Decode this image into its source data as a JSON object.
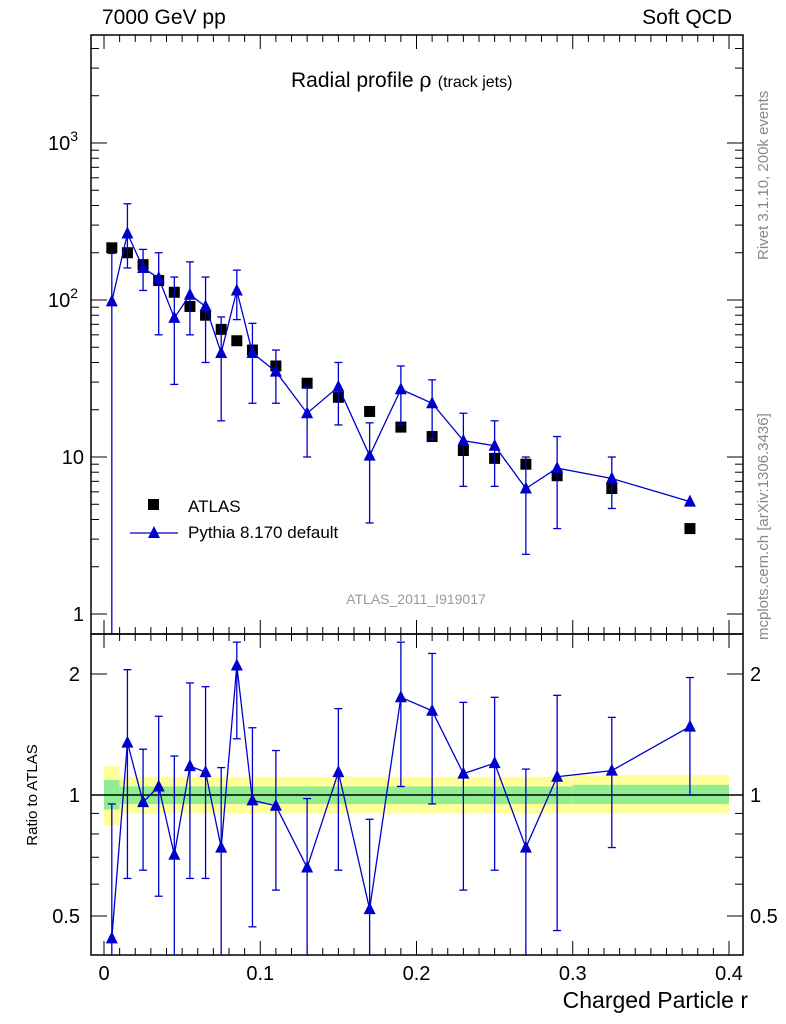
{
  "header": {
    "left": "7000 GeV pp",
    "right": "Soft QCD"
  },
  "side": {
    "top": "Rivet 3.1.10,  200k events",
    "bottom": "mcplots.cern.ch [arXiv:1306.3436]"
  },
  "chart_data": [
    {
      "type": "scatter",
      "title_main": "Radial profile ",
      "title_symbol": "ρ",
      "title_sub": "(track jets)",
      "xlabel": "Charged Particle r",
      "ylabel": "",
      "yscale": "log",
      "xlim": [
        -0.01,
        0.4
      ],
      "ylim": [
        0.8,
        5000
      ],
      "y_ticks": [
        "1",
        "10",
        "10²",
        "10³"
      ],
      "watermark": "ATLAS_2011_I919017",
      "series": [
        {
          "name": "ATLAS",
          "marker": "square",
          "color": "#000000",
          "points": [
            {
              "x": 0.005,
              "y": 215
            },
            {
              "x": 0.015,
              "y": 200
            },
            {
              "x": 0.025,
              "y": 168
            },
            {
              "x": 0.035,
              "y": 133
            },
            {
              "x": 0.045,
              "y": 112
            },
            {
              "x": 0.055,
              "y": 91
            },
            {
              "x": 0.065,
              "y": 80
            },
            {
              "x": 0.075,
              "y": 65
            },
            {
              "x": 0.085,
              "y": 55
            },
            {
              "x": 0.095,
              "y": 48
            },
            {
              "x": 0.11,
              "y": 38
            },
            {
              "x": 0.13,
              "y": 29.5
            },
            {
              "x": 0.15,
              "y": 24
            },
            {
              "x": 0.17,
              "y": 19.5
            },
            {
              "x": 0.19,
              "y": 15.5
            },
            {
              "x": 0.21,
              "y": 13.5
            },
            {
              "x": 0.23,
              "y": 11
            },
            {
              "x": 0.25,
              "y": 9.8
            },
            {
              "x": 0.27,
              "y": 9
            },
            {
              "x": 0.29,
              "y": 7.6
            },
            {
              "x": 0.325,
              "y": 6.3
            },
            {
              "x": 0.375,
              "y": 3.5
            }
          ]
        },
        {
          "name": "Pythia 8.170 default",
          "marker": "triangle",
          "color": "#0000cc",
          "points": [
            {
              "x": 0.005,
              "y": 98,
              "lo": 0.5,
              "hi": 198
            },
            {
              "x": 0.015,
              "y": 265,
              "lo": 160,
              "hi": 410
            },
            {
              "x": 0.025,
              "y": 160,
              "lo": 115,
              "hi": 210
            },
            {
              "x": 0.035,
              "y": 138,
              "lo": 60,
              "hi": 200
            },
            {
              "x": 0.045,
              "y": 77,
              "lo": 29,
              "hi": 140
            },
            {
              "x": 0.055,
              "y": 108,
              "lo": 60,
              "hi": 175
            },
            {
              "x": 0.065,
              "y": 91,
              "lo": 40,
              "hi": 140
            },
            {
              "x": 0.075,
              "y": 46,
              "lo": 17,
              "hi": 78
            },
            {
              "x": 0.085,
              "y": 115,
              "lo": 75,
              "hi": 155
            },
            {
              "x": 0.095,
              "y": 46,
              "lo": 22,
              "hi": 71
            },
            {
              "x": 0.11,
              "y": 35,
              "lo": 22,
              "hi": 48
            },
            {
              "x": 0.13,
              "y": 19,
              "lo": 10,
              "hi": 28
            },
            {
              "x": 0.15,
              "y": 28,
              "lo": 16,
              "hi": 40
            },
            {
              "x": 0.17,
              "y": 10.2,
              "lo": 3.8,
              "hi": 16.5
            },
            {
              "x": 0.19,
              "y": 27,
              "lo": 16,
              "hi": 38
            },
            {
              "x": 0.21,
              "y": 22,
              "lo": 13,
              "hi": 31
            },
            {
              "x": 0.23,
              "y": 12.7,
              "lo": 6.5,
              "hi": 19
            },
            {
              "x": 0.25,
              "y": 11.8,
              "lo": 6.5,
              "hi": 17
            },
            {
              "x": 0.27,
              "y": 6.3,
              "lo": 2.4,
              "hi": 10
            },
            {
              "x": 0.29,
              "y": 8.5,
              "lo": 3.5,
              "hi": 13.5
            },
            {
              "x": 0.325,
              "y": 7.3,
              "lo": 4.7,
              "hi": 10
            },
            {
              "x": 0.375,
              "y": 5.2,
              "lo": 0,
              "hi": 0
            }
          ]
        }
      ]
    },
    {
      "type": "scatter",
      "ylabel": "Ratio to ATLAS",
      "yscale": "log",
      "xlim": [
        -0.01,
        0.4
      ],
      "ylim": [
        0.4,
        2.4
      ],
      "y_ticks": [
        "0.5",
        "1",
        "2"
      ],
      "x_ticks": [
        "0",
        "0.1",
        "0.2",
        "0.3",
        "0.4"
      ],
      "reference": 1.0,
      "bands": {
        "inner_color": "#90ee90",
        "outer_color": "#ffff99"
      },
      "band_values": [
        {
          "x0": 0.0,
          "x1": 0.01,
          "inner": [
            0.92,
            1.09
          ],
          "outer": [
            0.84,
            1.18
          ]
        },
        {
          "x0": 0.01,
          "x1": 0.09,
          "inner": [
            0.95,
            1.05
          ],
          "outer": [
            0.9,
            1.11
          ]
        },
        {
          "x0": 0.09,
          "x1": 0.3,
          "inner": [
            0.95,
            1.05
          ],
          "outer": [
            0.9,
            1.11
          ]
        },
        {
          "x0": 0.3,
          "x1": 0.4,
          "inner": [
            0.95,
            1.06
          ],
          "outer": [
            0.9,
            1.12
          ]
        }
      ],
      "series": [
        {
          "name": "Pythia 8.170 default",
          "color": "#0000cc",
          "points": [
            {
              "x": 0.005,
              "y": 0.44,
              "lo": 0.2,
              "hi": 0.95
            },
            {
              "x": 0.015,
              "y": 1.35,
              "lo": 0.62,
              "hi": 2.05
            },
            {
              "x": 0.025,
              "y": 0.96,
              "lo": 0.65,
              "hi": 1.3
            },
            {
              "x": 0.035,
              "y": 1.05,
              "lo": 0.56,
              "hi": 1.57
            },
            {
              "x": 0.045,
              "y": 0.71,
              "lo": 0.26,
              "hi": 1.25
            },
            {
              "x": 0.055,
              "y": 1.18,
              "lo": 0.62,
              "hi": 1.9
            },
            {
              "x": 0.065,
              "y": 1.14,
              "lo": 0.62,
              "hi": 1.86
            },
            {
              "x": 0.075,
              "y": 0.74,
              "lo": 0.32,
              "hi": 1.17
            },
            {
              "x": 0.085,
              "y": 2.1,
              "lo": 1.38,
              "hi": 2.4
            },
            {
              "x": 0.095,
              "y": 0.97,
              "lo": 0.47,
              "hi": 1.47
            },
            {
              "x": 0.11,
              "y": 0.94,
              "lo": 0.58,
              "hi": 1.29
            },
            {
              "x": 0.13,
              "y": 0.66,
              "lo": 0.34,
              "hi": 0.98
            },
            {
              "x": 0.15,
              "y": 1.14,
              "lo": 0.65,
              "hi": 1.64
            },
            {
              "x": 0.17,
              "y": 0.52,
              "lo": 0.2,
              "hi": 0.87
            },
            {
              "x": 0.19,
              "y": 1.75,
              "lo": 1.05,
              "hi": 2.4
            },
            {
              "x": 0.21,
              "y": 1.62,
              "lo": 0.95,
              "hi": 2.25
            },
            {
              "x": 0.23,
              "y": 1.13,
              "lo": 0.58,
              "hi": 1.7
            },
            {
              "x": 0.25,
              "y": 1.2,
              "lo": 0.65,
              "hi": 1.75
            },
            {
              "x": 0.27,
              "y": 0.74,
              "lo": 0.27,
              "hi": 1.16
            },
            {
              "x": 0.29,
              "y": 1.11,
              "lo": 0.46,
              "hi": 1.77
            },
            {
              "x": 0.325,
              "y": 1.15,
              "lo": 0.74,
              "hi": 1.56
            },
            {
              "x": 0.375,
              "y": 1.48,
              "lo": 1.0,
              "hi": 1.96
            }
          ]
        }
      ]
    }
  ]
}
